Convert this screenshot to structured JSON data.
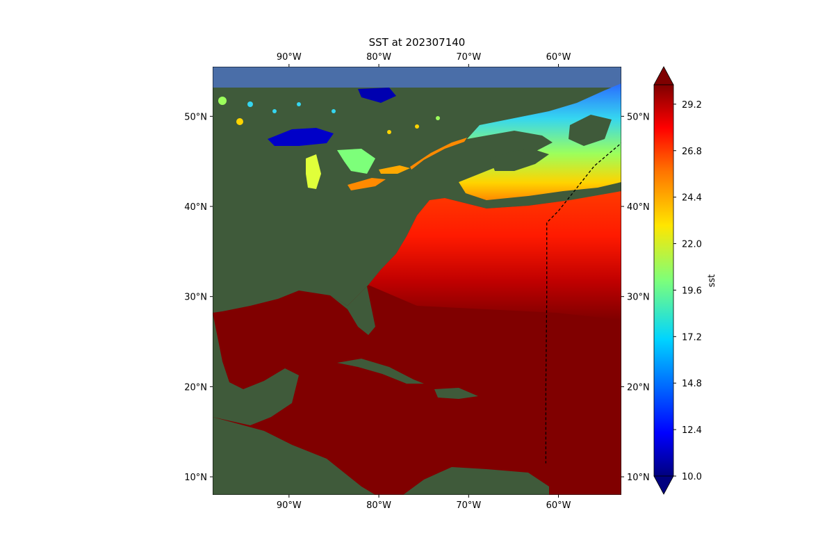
{
  "title": "SST at 202307140",
  "map": {
    "lon_range": [
      -98.5,
      -53
    ],
    "lat_range": [
      8,
      55.5
    ],
    "lon_ticks": [
      {
        "value": -90,
        "label": "90°W"
      },
      {
        "value": -80,
        "label": "80°W"
      },
      {
        "value": -70,
        "label": "70°W"
      },
      {
        "value": -60,
        "label": "60°W"
      }
    ],
    "lat_ticks": [
      {
        "value": 10,
        "label": "10°N"
      },
      {
        "value": 20,
        "label": "20°N"
      },
      {
        "value": 30,
        "label": "30°N"
      },
      {
        "value": 40,
        "label": "40°N"
      },
      {
        "value": 50,
        "label": "50°N"
      }
    ],
    "colors": {
      "land": "#3f5a3a",
      "land_dark": "#2e4530",
      "ocean_warm": "#800000",
      "ocean_border": "#4a6ea8"
    },
    "ship_track": [
      [
        -52.8,
        47.2
      ],
      [
        -56,
        44.5
      ],
      [
        -60,
        39.5
      ],
      [
        -61.3,
        38.2
      ],
      [
        -61.3,
        30
      ],
      [
        -61.4,
        20
      ],
      [
        -61.4,
        11.5
      ]
    ]
  },
  "colorbar": {
    "label": "sst",
    "min": 10.0,
    "max": 30.2,
    "ticks": [
      "10.0",
      "12.4",
      "14.8",
      "17.2",
      "19.6",
      "22.0",
      "24.4",
      "26.8",
      "29.2"
    ],
    "extend": "both",
    "colormap": "jet"
  }
}
